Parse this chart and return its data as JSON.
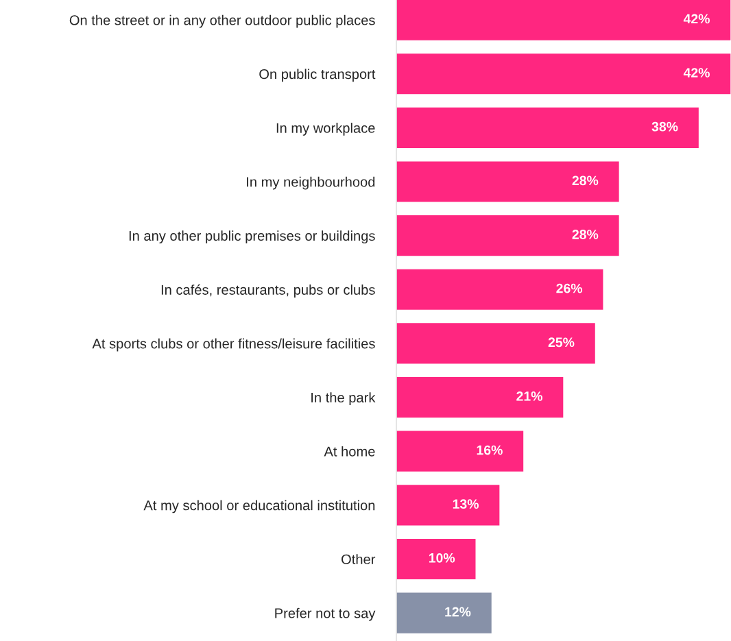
{
  "chart_data": {
    "type": "bar",
    "orientation": "horizontal",
    "categories": [
      "On the street or in any other outdoor public places",
      "On public transport",
      "In my workplace",
      "In my neighbourhood",
      "In any other public premises or buildings",
      "In cafés, restaurants, pubs or clubs",
      "At sports clubs or other fitness/leisure facilities",
      "In the park",
      "At home",
      "At my school or educational institution",
      "Other",
      "Prefer not to say"
    ],
    "values": [
      42,
      42,
      38,
      28,
      28,
      26,
      25,
      21,
      16,
      13,
      10,
      12
    ],
    "colors": [
      "#ff2680",
      "#ff2680",
      "#ff2680",
      "#ff2680",
      "#ff2680",
      "#ff2680",
      "#ff2680",
      "#ff2680",
      "#ff2680",
      "#ff2680",
      "#ff2680",
      "#8791a8"
    ],
    "value_labels": [
      "42%",
      "42%",
      "38%",
      "28%",
      "28%",
      "26%",
      "25%",
      "21%",
      "16%",
      "13%",
      "10%",
      "12%"
    ],
    "grid": false,
    "legend": false
  }
}
